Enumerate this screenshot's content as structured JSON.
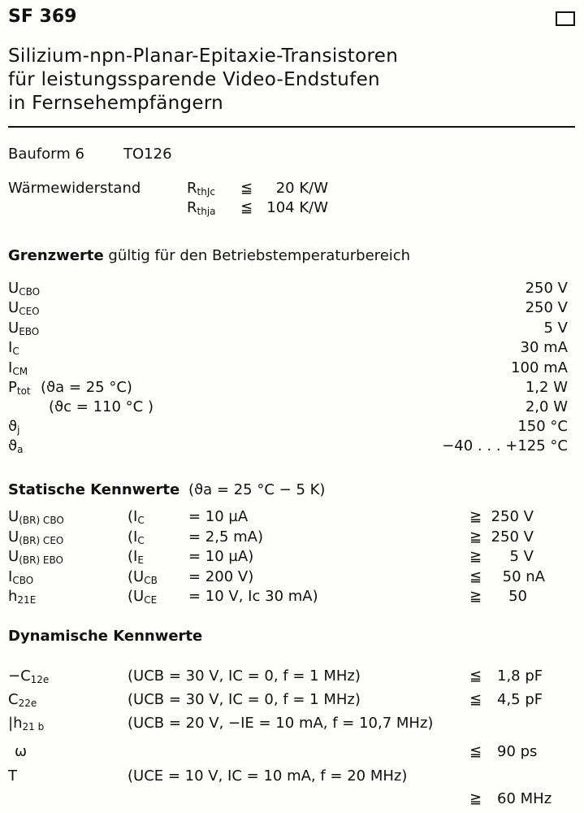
{
  "header": {
    "title": "SF 369",
    "subtitle": [
      "Silizium-npn-Planar-Epitaxie-Transistoren",
      "für leistungssparende Video-Endstufen",
      "in Fernsehempfängern"
    ],
    "box_icon": "empty-square"
  },
  "package": {
    "label": "Bauform 6",
    "value": "TO126"
  },
  "thermal": {
    "label": "Wärmewiderstand",
    "rows": [
      {
        "sym": "R",
        "sub": "thJc",
        "op": "≦",
        "value": "20 K/W"
      },
      {
        "sym": "R",
        "sub": "thja",
        "op": "≦",
        "value": "104 K/W"
      }
    ]
  },
  "limits": {
    "heading_bold": "Grenzwerte",
    "heading_rest": "gültig für den Betriebstemperaturbereich",
    "rows": [
      {
        "sym": "U",
        "sub": "CBO",
        "cond": "",
        "value": "250 V"
      },
      {
        "sym": "U",
        "sub": "CEO",
        "cond": "",
        "value": "250 V"
      },
      {
        "sym": "U",
        "sub": "EBO",
        "cond": "",
        "value": "5 V"
      },
      {
        "sym": "I",
        "sub": "C",
        "cond": "",
        "value": "30 mA"
      },
      {
        "sym": "I",
        "sub": "CM",
        "cond": "",
        "value": "100 mA"
      },
      {
        "sym": "P",
        "sub": "tot",
        "cond": "(ϑa = 25 °C)",
        "value": "1,2 W"
      },
      {
        "sym": "",
        "sub": "",
        "cond": "(ϑc = 110 °C )",
        "value": "2,0 W"
      },
      {
        "sym": "ϑ",
        "sub": "j",
        "cond": "",
        "value": "150 °C"
      },
      {
        "sym": "ϑ",
        "sub": "a",
        "cond": "",
        "value": "−40 . . . +125 °C"
      }
    ]
  },
  "static": {
    "heading": "Statische Kennwerte",
    "condition": "(ϑa = 25 °C − 5 K)",
    "rows": [
      {
        "sym": "U",
        "sub": "(BR) CBO",
        "p": "(I",
        "psub": "C",
        "cond": "= 10 µA",
        "op": "≧",
        "value": "250 V"
      },
      {
        "sym": "U",
        "sub": "(BR) CEO",
        "p": "(I",
        "psub": "C",
        "cond": "= 2,5 mA)",
        "op": "≧",
        "value": "250 V"
      },
      {
        "sym": "U",
        "sub": "(BR) EBO",
        "p": "(I",
        "psub": "E",
        "cond": "= 10 µA)",
        "op": "≧",
        "value": "5 V"
      },
      {
        "sym": "I",
        "sub": "CBO",
        "p": "(U",
        "psub": "CB",
        "cond": "= 200 V)",
        "op": "≦",
        "value": "50 nA"
      },
      {
        "sym": "h",
        "sub": "21E",
        "p": "(U",
        "psub": "CE",
        "cond": "= 10 V, Ic 30 mA)",
        "op": "≧",
        "value": "50"
      }
    ]
  },
  "dynamic": {
    "heading": "Dynamische Kennwerte",
    "rows": [
      {
        "sym": "−C",
        "sub": "12e",
        "cond": "(UCB = 30 V,   IC = 0, f = 1 MHz)",
        "op": "≦",
        "value": "1,8 pF"
      },
      {
        "sym": "C",
        "sub": "22e",
        "cond": "(UCB = 30 V,   IC = 0, f = 1 MHz)",
        "op": "≦",
        "value": "4,5 pF"
      },
      {
        "sym": "|h",
        "sub": "21 b",
        "cond": "(UCB = 20 V,  −IE = 10 mA, f = 10,7 MHz)",
        "op": "",
        "value": ""
      },
      {
        "sym": "ω",
        "sub": "",
        "cond": "",
        "op": "≦",
        "value": "90 ps"
      },
      {
        "sym": "T",
        "sub": "",
        "cond": "(UCE = 10 V, IC = 10 mA, f = 20 MHz)",
        "op": "",
        "value": ""
      },
      {
        "sym": "",
        "sub": "",
        "cond": "",
        "op": "≧",
        "value": "60 MHz"
      }
    ]
  }
}
